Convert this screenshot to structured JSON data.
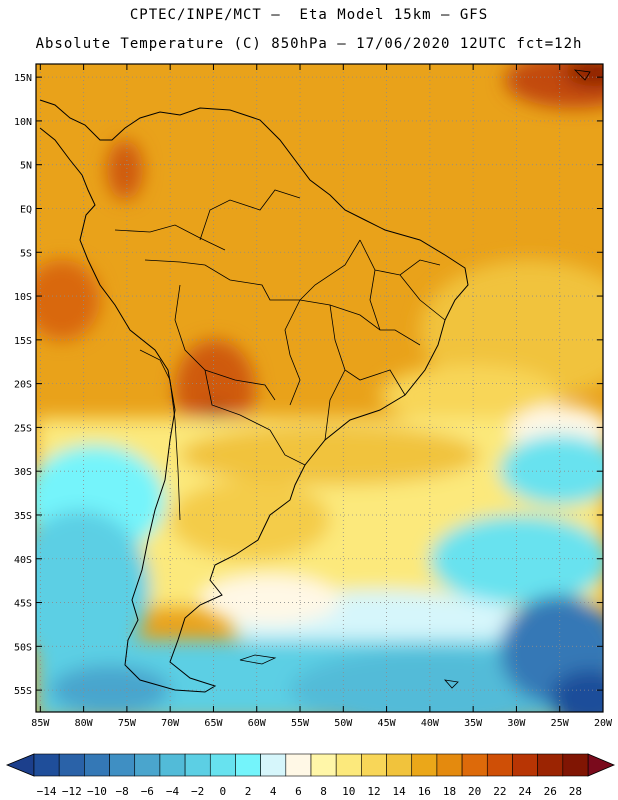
{
  "header": {
    "line1": "CPTEC/INPE/MCT –  Eta Model 15km – GFS",
    "line2": "Absolute Temperature (C) 850hPa – 17/06/2020 12UTC fct=12h"
  },
  "map": {
    "lat_labels": [
      "15N",
      "10N",
      "5N",
      "EQ",
      "5S",
      "10S",
      "15S",
      "20S",
      "25S",
      "30S",
      "35S",
      "40S",
      "45S",
      "50S",
      "55S"
    ],
    "lat_values": [
      15,
      10,
      5,
      0,
      -5,
      -10,
      -15,
      -20,
      -25,
      -30,
      -35,
      -40,
      -45,
      -50,
      -55
    ],
    "lon_labels": [
      "85W",
      "80W",
      "75W",
      "70W",
      "65W",
      "60W",
      "55W",
      "50W",
      "45W",
      "40W",
      "35W",
      "30W",
      "25W",
      "20W"
    ],
    "lon_values": [
      -85,
      -80,
      -75,
      -70,
      -65,
      -60,
      -55,
      -50,
      -45,
      -40,
      -35,
      -30,
      -25,
      -20
    ],
    "extent": {
      "lon_min": -85.5,
      "lon_max": -20,
      "lat_min": -57.5,
      "lat_max": 16.5
    }
  },
  "colorbar": {
    "labels": [
      "-14",
      "-12",
      "-10",
      "-8",
      "-6",
      "-4",
      "-2",
      "0",
      "2",
      "4",
      "6",
      "8",
      "10",
      "12",
      "14",
      "16",
      "18",
      "20",
      "22",
      "24",
      "26",
      "28"
    ],
    "colors": [
      "#1f4e9a",
      "#2a62a8",
      "#3478b6",
      "#3f8fc3",
      "#4aa5cd",
      "#52bbd8",
      "#5ccfe4",
      "#67e2ef",
      "#74f4fb",
      "#d6f6fb",
      "#fff8e6",
      "#fff6a8",
      "#fce97c",
      "#f8d658",
      "#f1c33c",
      "#eba719",
      "#e48a0e",
      "#dd6a0a",
      "#cf4f06",
      "#b83504",
      "#9b2402",
      "#801503"
    ],
    "under_color": "#1c3f8c",
    "over_color": "#7a0a1c"
  }
}
